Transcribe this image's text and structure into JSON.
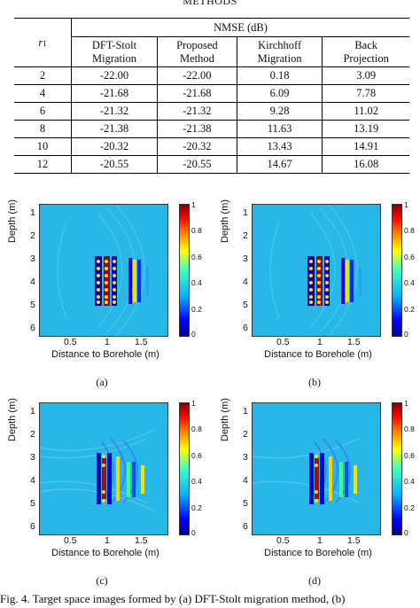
{
  "header": "METHODS",
  "table": {
    "row_label": "r",
    "row_label_sub": "1",
    "group_header": "NMSE (dB)",
    "columns": [
      {
        "line1": "DFT-Stolt",
        "line2": "Migration"
      },
      {
        "line1": "Proposed",
        "line2": "Method"
      },
      {
        "line1": "Kirchhoff",
        "line2": "Migration"
      },
      {
        "line1": "Back",
        "line2": "Projection"
      }
    ],
    "rows": [
      {
        "r": "2",
        "values": [
          "-22.00",
          "-22.00",
          "0.18",
          "3.09"
        ]
      },
      {
        "r": "4",
        "values": [
          "-21.68",
          "-21.68",
          "6.09",
          "7.78"
        ]
      },
      {
        "r": "6",
        "values": [
          "-21.32",
          "-21.32",
          "9.28",
          "11.02"
        ]
      },
      {
        "r": "8",
        "values": [
          "-21.38",
          "-21.38",
          "11.63",
          "13.19"
        ]
      },
      {
        "r": "10",
        "values": [
          "-20.32",
          "-20.32",
          "13.43",
          "14.91"
        ]
      },
      {
        "r": "12",
        "values": [
          "-20.55",
          "-20.55",
          "14.67",
          "16.08"
        ]
      }
    ]
  },
  "figure": {
    "ylabel": "Depth (m)",
    "xlabel": "Distance to Borehole (m)",
    "yticks": [
      "1",
      "2",
      "3",
      "4",
      "5",
      "6"
    ],
    "xticks": [
      "0.5",
      "1",
      "1.5"
    ],
    "cbar_ticks": [
      "1",
      "0.8",
      "0.6",
      "0.4",
      "0.2",
      "0"
    ],
    "panels": [
      "(a)",
      "(b)",
      "(c)",
      "(d)"
    ],
    "caption": "Fig. 4.   Target space images formed by (a) DFT-Stolt migration method, (b)"
  }
}
